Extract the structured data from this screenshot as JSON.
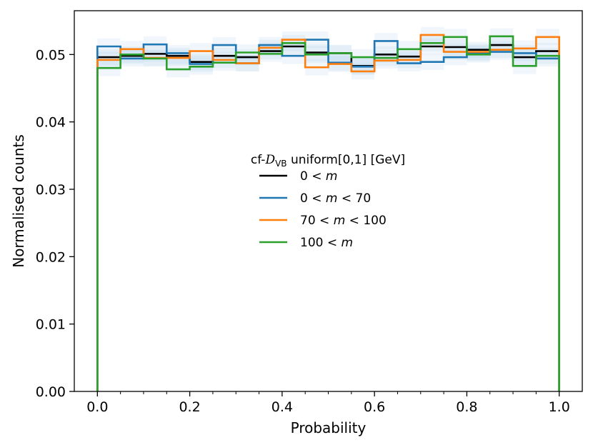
{
  "chart_data": {
    "type": "histogram-step",
    "xlabel": "Probability",
    "ylabel": "Normalised counts",
    "xlim": [
      -0.05,
      1.05
    ],
    "ylim": [
      0.0,
      0.0565
    ],
    "xticks": [
      0.0,
      0.2,
      0.4,
      0.6,
      0.8,
      1.0
    ],
    "xtick_labels": [
      "0.0",
      "0.2",
      "0.4",
      "0.6",
      "0.8",
      "1.0"
    ],
    "yticks": [
      0.0,
      0.01,
      0.02,
      0.03,
      0.04,
      0.05
    ],
    "ytick_labels": [
      "0.00",
      "0.01",
      "0.02",
      "0.03",
      "0.04",
      "0.05"
    ],
    "bin_edges": [
      0.0,
      0.05,
      0.1,
      0.15,
      0.2,
      0.25,
      0.3,
      0.35,
      0.4,
      0.45,
      0.5,
      0.55,
      0.6,
      0.65,
      0.7,
      0.75,
      0.8,
      0.85,
      0.9,
      0.95,
      1.0
    ],
    "legend": {
      "title": "cf-",
      "title_symbol": "D",
      "title_subscript": "VB",
      "title_rest": " uniform[0,1] [GeV]",
      "location": "center"
    },
    "band_color": "#a6cbe6",
    "band_halfwidth": 0.0012,
    "series": [
      {
        "name": "0 < m",
        "label_parts": [
          "0",
          " < ",
          "m",
          ""
        ],
        "color": "#000000",
        "values": [
          0.0496,
          0.0498,
          0.0501,
          0.0498,
          0.0489,
          0.0498,
          0.0496,
          0.0505,
          0.0512,
          0.0503,
          0.0502,
          0.0483,
          0.05,
          0.0497,
          0.0512,
          0.0511,
          0.0507,
          0.0514,
          0.0496,
          0.0505
        ]
      },
      {
        "name": "0 < m < 70",
        "label_parts": [
          "0",
          " < ",
          "m",
          " < 70"
        ],
        "color": "#1f77b4",
        "values": [
          0.0512,
          0.0494,
          0.0515,
          0.0502,
          0.0486,
          0.0514,
          0.0487,
          0.0514,
          0.0498,
          0.0522,
          0.0488,
          0.0482,
          0.052,
          0.0487,
          0.0489,
          0.0496,
          0.0502,
          0.0504,
          0.0502,
          0.0494
        ]
      },
      {
        "name": "70 < m < 100",
        "label_parts": [
          "70",
          " < ",
          "m",
          " < 100"
        ],
        "color": "#ff7f0e",
        "values": [
          0.0492,
          0.0508,
          0.0495,
          0.0495,
          0.0505,
          0.0492,
          0.0487,
          0.051,
          0.0522,
          0.0481,
          0.0486,
          0.0475,
          0.0491,
          0.0492,
          0.0529,
          0.0504,
          0.0504,
          0.0507,
          0.0509,
          0.0526
        ]
      },
      {
        "name": "100 < m",
        "label_parts": [
          "100",
          " < ",
          "m",
          ""
        ],
        "color": "#2ca02c",
        "values": [
          0.048,
          0.05,
          0.0494,
          0.0478,
          0.0482,
          0.0488,
          0.0503,
          0.0501,
          0.0517,
          0.05,
          0.0502,
          0.0496,
          0.0495,
          0.0508,
          0.0517,
          0.0526,
          0.05,
          0.0527,
          0.0483,
          0.0498
        ]
      }
    ]
  }
}
